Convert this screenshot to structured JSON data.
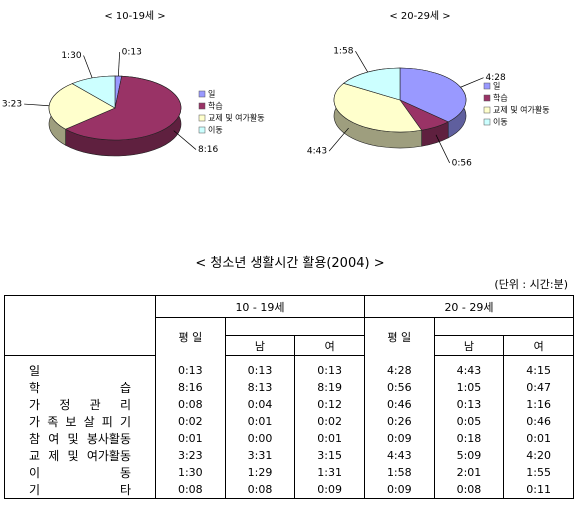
{
  "chart_data": [
    {
      "type": "pie",
      "title": "< 10-19세 >",
      "categories": [
        "일",
        "학습",
        "교제 및 여가활동",
        "이동"
      ],
      "values": [
        13,
        496,
        203,
        90
      ],
      "value_labels": [
        "0:13",
        "8:16",
        "3:23",
        "1:30"
      ],
      "colors": [
        "#9999ff",
        "#993366",
        "#ffffcc",
        "#ccffff"
      ]
    },
    {
      "type": "pie",
      "title": "< 20-29세 >",
      "categories": [
        "일",
        "학습",
        "교제 및 여가활동",
        "이동"
      ],
      "values": [
        268,
        56,
        283,
        118
      ],
      "value_labels": [
        "4:28",
        "0:56",
        "4:43",
        "1:58"
      ],
      "colors": [
        "#9999ff",
        "#993366",
        "#ffffcc",
        "#ccffff"
      ]
    }
  ],
  "table": {
    "title": "< 청소년 생활시간 활용(2004) >",
    "unit": "(단위 : 시간:분)",
    "groups": [
      "10 - 19세",
      "20 - 29세"
    ],
    "columns": [
      "평 일",
      "남",
      "여",
      "평 일",
      "남",
      "여"
    ],
    "rows": [
      {
        "label": "일",
        "cells": [
          "0:13",
          "0:13",
          "0:13",
          "4:28",
          "4:43",
          "4:15"
        ]
      },
      {
        "label": "학 습",
        "cells": [
          "8:16",
          "8:13",
          "8:19",
          "0:56",
          "1:05",
          "0:47"
        ]
      },
      {
        "label": "가 정 관 리",
        "cells": [
          "0:08",
          "0:04",
          "0:12",
          "0:46",
          "0:13",
          "1:16"
        ]
      },
      {
        "label": "가 족 보 살 피 기",
        "cells": [
          "0:02",
          "0:01",
          "0:02",
          "0:26",
          "0:05",
          "0:46"
        ]
      },
      {
        "label": "참 여 및 봉사활동",
        "cells": [
          "0:01",
          "0:00",
          "0:01",
          "0:09",
          "0:18",
          "0:01"
        ]
      },
      {
        "label": "교 제 및 여가활동",
        "cells": [
          "3:23",
          "3:31",
          "3:15",
          "4:43",
          "5:09",
          "4:20"
        ]
      },
      {
        "label": "이 동",
        "cells": [
          "1:30",
          "1:29",
          "1:31",
          "1:58",
          "2:01",
          "1:55"
        ]
      },
      {
        "label": "기 타",
        "cells": [
          "0:08",
          "0:08",
          "0:09",
          "0:09",
          "0:08",
          "0:11"
        ]
      }
    ]
  }
}
